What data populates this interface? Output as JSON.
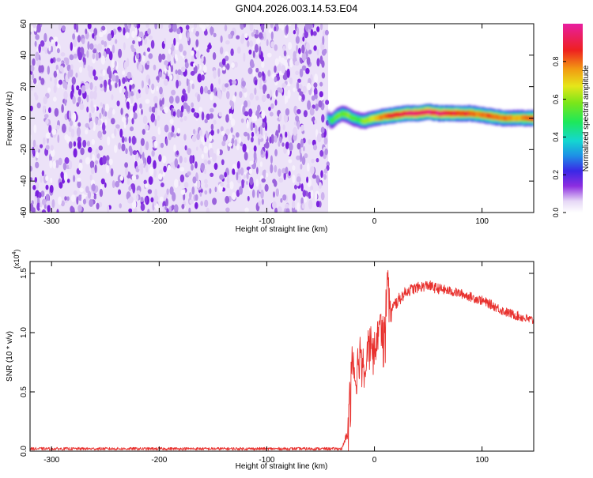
{
  "figure_title": "GN04.2026.003.14.53.E04",
  "chart_data": [
    {
      "type": "heatmap",
      "title": "GN04.2026.003.14.53.E04",
      "xlabel": "Height of straight line (km)",
      "ylabel": "Frequency (Hz)",
      "xlim": [
        -320,
        148
      ],
      "ylim": [
        -60,
        60
      ],
      "xticks": [
        -300,
        -200,
        -100,
        0,
        100
      ],
      "yticks": [
        -60,
        -40,
        -20,
        0,
        20,
        40,
        60
      ],
      "noise_region_x": [
        -320,
        -43
      ],
      "noise_level": 0.05,
      "signal_track": {
        "x": [
          -43,
          -40,
          -35,
          -30,
          -25,
          -20,
          -15,
          -10,
          0,
          10,
          20,
          30,
          40,
          50,
          60,
          70,
          80,
          90,
          100,
          110,
          120,
          130,
          140,
          148
        ],
        "frequency": [
          0,
          -2,
          1,
          3,
          2,
          0,
          -1,
          -2,
          0,
          1,
          2,
          3,
          3,
          4,
          3,
          3,
          3,
          3,
          2,
          1,
          0,
          0,
          0,
          0
        ],
        "amplitude": [
          0.35,
          0.5,
          0.6,
          0.55,
          0.6,
          0.55,
          0.5,
          0.6,
          0.7,
          0.85,
          0.9,
          0.92,
          0.95,
          0.97,
          0.95,
          0.92,
          0.88,
          0.85,
          0.8,
          0.85,
          0.8,
          0.75,
          0.8,
          0.85
        ]
      },
      "colorbar": {
        "label": "Normalized spectral amplitude",
        "range": [
          0,
          1
        ],
        "ticks": [
          0.0,
          0.2,
          0.4,
          0.6,
          0.8
        ],
        "tick_labels": [
          "0.0",
          "0.2",
          "0.4",
          "0.6",
          "0.8"
        ]
      }
    },
    {
      "type": "line",
      "xlabel": "Height of straight line (km)",
      "ylabel": "SNR (10 * v/v)",
      "y_scale_label": "(x10",
      "y_scale_exponent": "4",
      "y_scale_suffix": ")",
      "xlim": [
        -320,
        148
      ],
      "ylim": [
        0,
        1.6
      ],
      "xticks": [
        -300,
        -200,
        -100,
        0,
        100
      ],
      "yticks": [
        0.0,
        0.5,
        1.0,
        1.5
      ],
      "ytick_labels": [
        "0.0",
        "0.5",
        "1.0",
        "1.5"
      ],
      "series": [
        {
          "name": "SNR",
          "color": "#e8312e",
          "x": [
            -320,
            -200,
            -100,
            -30,
            -25,
            -22,
            -20,
            -18,
            -15,
            -12,
            -10,
            -5,
            0,
            5,
            10,
            12,
            15,
            20,
            25,
            30,
            40,
            50,
            55,
            60,
            70,
            80,
            90,
            100,
            110,
            120,
            130,
            140,
            148
          ],
          "y": [
            0.02,
            0.02,
            0.02,
            0.02,
            0.15,
            0.7,
            0.85,
            0.6,
            0.75,
            0.9,
            0.7,
            0.95,
            0.85,
            1.05,
            1.1,
            1.55,
            1.15,
            1.25,
            1.3,
            1.35,
            1.38,
            1.4,
            1.38,
            1.37,
            1.35,
            1.33,
            1.3,
            1.27,
            1.23,
            1.18,
            1.15,
            1.12,
            1.1
          ],
          "noise": [
            0.012,
            0.012,
            0.012,
            0.012,
            0.05,
            0.18,
            0.2,
            0.2,
            0.2,
            0.2,
            0.2,
            0.18,
            0.16,
            0.14,
            0.12,
            0.1,
            0.1,
            0.06,
            0.05,
            0.05,
            0.045,
            0.045,
            0.045,
            0.045,
            0.04,
            0.04,
            0.04,
            0.04,
            0.04,
            0.04,
            0.04,
            0.04,
            0.04
          ]
        }
      ]
    }
  ]
}
